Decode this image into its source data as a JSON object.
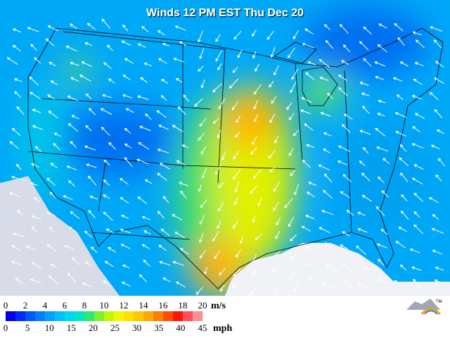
{
  "title": "Winds 12 PM EST Thu Dec 20",
  "legend": {
    "colors": [
      "#0000e8",
      "#0028ff",
      "#0058ff",
      "#0080ff",
      "#00a0ff",
      "#00c0ff",
      "#00d8f0",
      "#00e8c0",
      "#30e870",
      "#80f030",
      "#c0f800",
      "#f0f800",
      "#ffe000",
      "#ffc800",
      "#ffa800",
      "#ff8000",
      "#ff5000",
      "#ff1800",
      "#ff5060",
      "#ff9090"
    ],
    "ms": {
      "unit": "m/s",
      "ticks": [
        0,
        2,
        4,
        6,
        8,
        10,
        12,
        14,
        16,
        18,
        20
      ]
    },
    "mph": {
      "unit": "mph",
      "ticks": [
        0,
        5,
        10,
        15,
        20,
        25,
        30,
        35,
        40,
        45
      ]
    }
  },
  "logo_mark": "TM"
}
